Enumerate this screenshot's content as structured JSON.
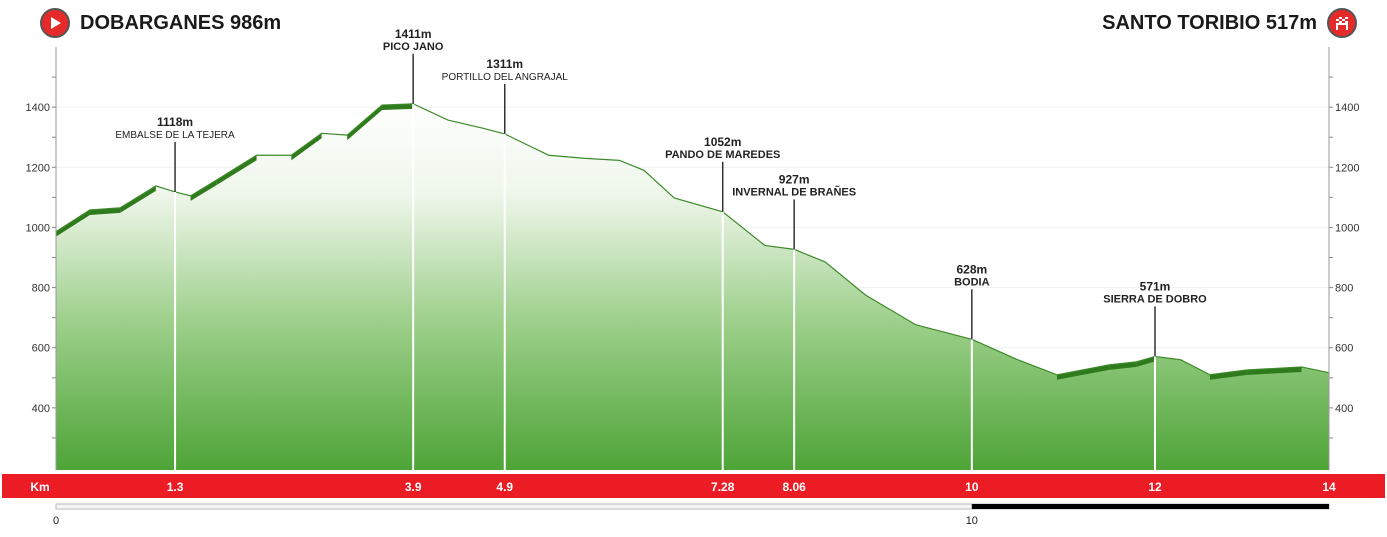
{
  "header": {
    "start_label": "DOBARGANES 986m",
    "start_icon": "play-icon",
    "finish_label": "SANTO TORIBIO 517m",
    "finish_icon": "checkered-flag-icon"
  },
  "colors": {
    "accent_red": "#ec1c24",
    "fill_green": "#4ea437",
    "ridge_green": "#2f7a1c",
    "line_green": "#3d8a2a"
  },
  "chart_data": {
    "type": "area",
    "title": "",
    "xlabel": "Km",
    "ylabel": "",
    "xlim": [
      0,
      13.9
    ],
    "ylim": [
      200,
      1600
    ],
    "yticks": [
      400,
      600,
      800,
      1000,
      1200,
      1400
    ],
    "xticks": [
      {
        "value": 1.3,
        "label": "1.3"
      },
      {
        "value": 3.9,
        "label": "3.9"
      },
      {
        "value": 4.9,
        "label": "4.9"
      },
      {
        "value": 7.28,
        "label": "7.28"
      },
      {
        "value": 8.06,
        "label": "8.06"
      },
      {
        "value": 10,
        "label": "10"
      },
      {
        "value": 12,
        "label": "12"
      },
      {
        "value": 13.9,
        "label": "14"
      }
    ],
    "profile": {
      "km": [
        0,
        0.37,
        0.7,
        1.09,
        1.3,
        1.47,
        1.75,
        2.19,
        2.57,
        2.9,
        3.18,
        3.56,
        3.9,
        4.28,
        4.66,
        4.9,
        5.38,
        5.76,
        6.15,
        6.42,
        6.75,
        7.28,
        7.74,
        8.06,
        8.4,
        8.84,
        9.39,
        9.72,
        10,
        10.5,
        10.93,
        11.5,
        11.8,
        12,
        12.28,
        12.6,
        13,
        13.6,
        13.9
      ],
      "elev": [
        986,
        1058,
        1065,
        1138,
        1118,
        1105,
        1157,
        1240,
        1240,
        1313,
        1307,
        1407,
        1411,
        1357,
        1330,
        1311,
        1240,
        1230,
        1223,
        1190,
        1098,
        1052,
        940,
        927,
        885,
        775,
        676,
        650,
        628,
        560,
        510,
        543,
        553,
        571,
        560,
        510,
        526,
        536,
        517
      ]
    },
    "waypoints": [
      {
        "km": 1.3,
        "elev": 1118,
        "elev_label": "1118m",
        "name": "EMBALSE DE LA TEJERA",
        "small": true
      },
      {
        "km": 3.9,
        "elev": 1411,
        "elev_label": "1411m",
        "name": "PICO JANO",
        "small": false
      },
      {
        "km": 4.9,
        "elev": 1311,
        "elev_label": "1311m",
        "name": "PORTILLO DEL ANGRAJAL",
        "small": true
      },
      {
        "km": 7.28,
        "elev": 1052,
        "elev_label": "1052m",
        "name": "PANDO DE MAREDES",
        "small": false
      },
      {
        "km": 8.06,
        "elev": 927,
        "elev_label": "927m",
        "name": "INVERNAL DE BRAÑES",
        "small": false
      },
      {
        "km": 10,
        "elev": 628,
        "elev_label": "628m",
        "name": "BODIA",
        "small": false
      },
      {
        "km": 12,
        "elev": 571,
        "elev_label": "571m",
        "name": "SIERRA DE DOBRO",
        "small": false
      }
    ],
    "scale_bar": {
      "labels": [
        {
          "value": 0,
          "label": "0"
        },
        {
          "value": 10,
          "label": "10"
        }
      ],
      "dark_from": 10
    }
  }
}
